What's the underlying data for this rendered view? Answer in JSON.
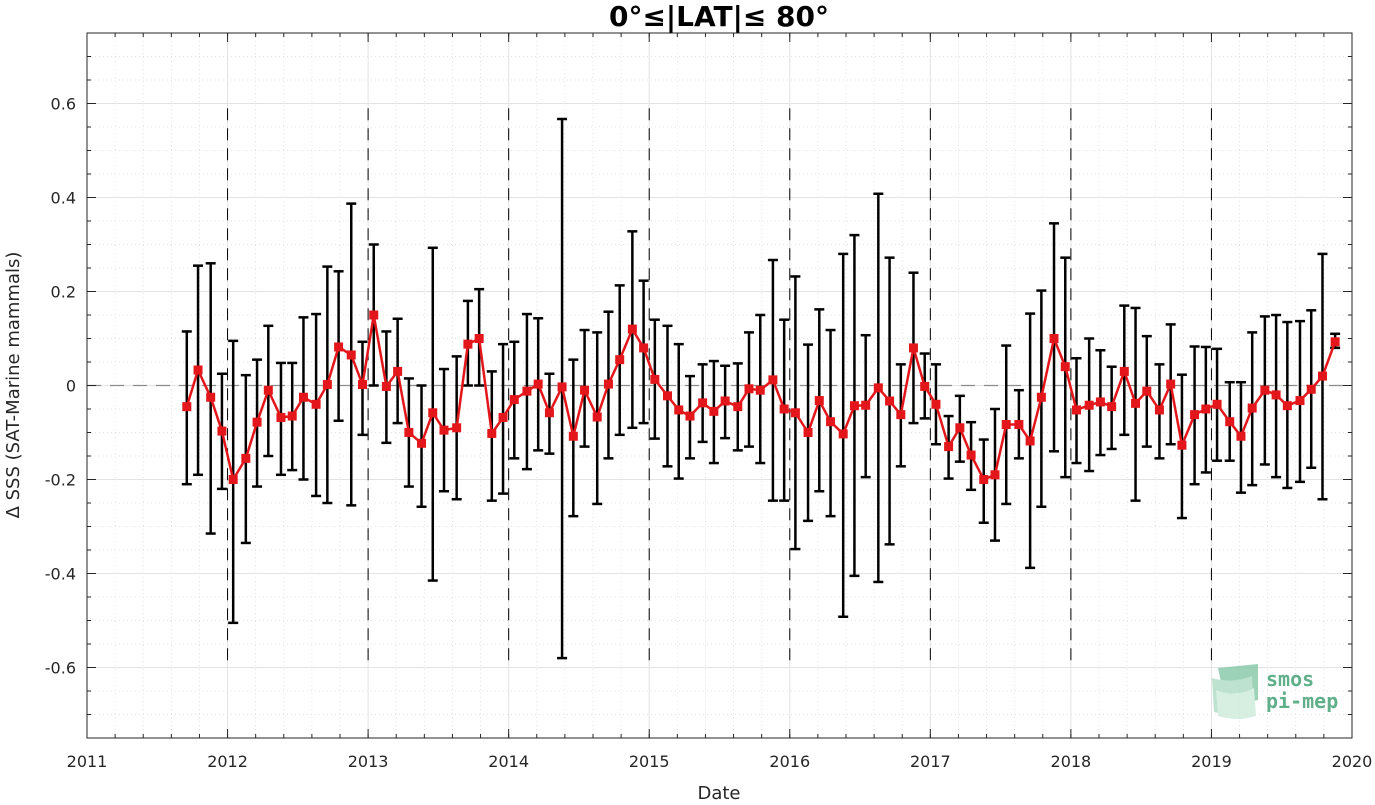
{
  "chart_data": {
    "type": "line",
    "title": "0°≤|LAT|≤ 80°",
    "xlabel": "Date",
    "ylabel": "Δ SSS (SAT-Marine mammals)",
    "xlim": [
      2011,
      2020
    ],
    "ylim": [
      -0.75,
      0.75
    ],
    "x_ticks": [
      2011,
      2012,
      2013,
      2014,
      2015,
      2016,
      2017,
      2018,
      2019,
      2020
    ],
    "x_tick_labels": [
      "2011",
      "2012",
      "2013",
      "2014",
      "2015",
      "2016",
      "2017",
      "2018",
      "2019",
      "2020"
    ],
    "y_ticks": [
      0.6,
      0.4,
      0.2,
      0,
      -0.2,
      -0.4,
      -0.6
    ],
    "y_tick_labels": [
      "0.6",
      "0.4",
      "0.2",
      "0",
      "-0.2",
      "-0.4",
      "-0.6"
    ],
    "grid": true,
    "year_boundary_lines": [
      2012,
      2013,
      2014,
      2015,
      2016,
      2017,
      2018,
      2019
    ],
    "zero_line": 0,
    "series": [
      {
        "color": "#e3171b",
        "error_bar_color": "#000000",
        "marker": "square",
        "x": [
          2011.71,
          2011.79,
          2011.88,
          2011.96,
          2012.04,
          2012.13,
          2012.21,
          2012.29,
          2012.38,
          2012.46,
          2012.54,
          2012.63,
          2012.71,
          2012.79,
          2012.88,
          2012.96,
          2013.04,
          2013.13,
          2013.21,
          2013.29,
          2013.38,
          2013.46,
          2013.54,
          2013.63,
          2013.71,
          2013.79,
          2013.88,
          2013.96,
          2014.04,
          2014.13,
          2014.21,
          2014.29,
          2014.38,
          2014.46,
          2014.54,
          2014.63,
          2014.71,
          2014.79,
          2014.88,
          2014.96,
          2015.04,
          2015.13,
          2015.21,
          2015.29,
          2015.38,
          2015.46,
          2015.54,
          2015.63,
          2015.71,
          2015.79,
          2015.88,
          2015.96,
          2016.04,
          2016.13,
          2016.21,
          2016.29,
          2016.38,
          2016.46,
          2016.54,
          2016.63,
          2016.71,
          2016.79,
          2016.88,
          2016.96,
          2017.04,
          2017.13,
          2017.21,
          2017.29,
          2017.38,
          2017.46,
          2017.54,
          2017.63,
          2017.71,
          2017.79,
          2017.88,
          2017.96,
          2018.04,
          2018.13,
          2018.21,
          2018.29,
          2018.38,
          2018.46,
          2018.54,
          2018.63,
          2018.71,
          2018.79,
          2018.88,
          2018.96,
          2019.04,
          2019.13,
          2019.21,
          2019.29,
          2019.38,
          2019.46,
          2019.54,
          2019.63,
          2019.71,
          2019.79,
          2019.88
        ],
        "y": [
          -0.045,
          0.033,
          -0.025,
          -0.097,
          -0.2,
          -0.155,
          -0.078,
          -0.01,
          -0.068,
          -0.065,
          -0.025,
          -0.04,
          0.002,
          0.082,
          0.065,
          0.002,
          0.15,
          -0.002,
          0.03,
          -0.1,
          -0.123,
          -0.058,
          -0.095,
          -0.09,
          0.088,
          0.1,
          -0.102,
          -0.068,
          -0.03,
          -0.012,
          0.003,
          -0.058,
          -0.003,
          -0.108,
          -0.01,
          -0.067,
          0.003,
          0.055,
          0.12,
          0.08,
          0.013,
          -0.022,
          -0.052,
          -0.065,
          -0.037,
          -0.055,
          -0.033,
          -0.045,
          -0.007,
          -0.01,
          0.012,
          -0.05,
          -0.058,
          -0.1,
          -0.032,
          -0.077,
          -0.103,
          -0.043,
          -0.042,
          -0.005,
          -0.033,
          -0.062,
          0.08,
          -0.002,
          -0.04,
          -0.13,
          -0.09,
          -0.148,
          -0.2,
          -0.19,
          -0.083,
          -0.083,
          -0.118,
          -0.025,
          0.1,
          0.04,
          -0.052,
          -0.042,
          -0.035,
          -0.045,
          0.03,
          -0.038,
          -0.012,
          -0.052,
          0.003,
          -0.127,
          -0.062,
          -0.05,
          -0.04,
          -0.077,
          -0.108,
          -0.048,
          -0.01,
          -0.02,
          -0.043,
          -0.032,
          -0.008,
          0.02,
          0.093
        ],
        "err_low": [
          -0.21,
          -0.19,
          -0.315,
          -0.22,
          -0.505,
          -0.335,
          -0.215,
          -0.15,
          -0.19,
          -0.18,
          -0.2,
          -0.235,
          -0.25,
          -0.075,
          -0.255,
          -0.105,
          0.0,
          -0.122,
          -0.08,
          -0.215,
          -0.258,
          -0.415,
          -0.225,
          -0.242,
          -0.0,
          -0.0,
          -0.245,
          -0.23,
          -0.155,
          -0.178,
          -0.138,
          -0.145,
          -0.58,
          -0.278,
          -0.13,
          -0.252,
          -0.155,
          -0.105,
          -0.09,
          -0.08,
          -0.113,
          -0.172,
          -0.198,
          -0.155,
          -0.12,
          -0.165,
          -0.112,
          -0.138,
          -0.13,
          -0.165,
          -0.245,
          -0.245,
          -0.348,
          -0.288,
          -0.225,
          -0.278,
          -0.492,
          -0.405,
          -0.195,
          -0.418,
          -0.338,
          -0.172,
          -0.08,
          -0.07,
          -0.125,
          -0.198,
          -0.162,
          -0.222,
          -0.292,
          -0.33,
          -0.252,
          -0.155,
          -0.388,
          -0.258,
          -0.14,
          -0.195,
          -0.165,
          -0.182,
          -0.148,
          -0.135,
          -0.105,
          -0.245,
          -0.13,
          -0.155,
          -0.125,
          -0.282,
          -0.21,
          -0.185,
          -0.16,
          -0.16,
          -0.228,
          -0.212,
          -0.168,
          -0.195,
          -0.218,
          -0.205,
          -0.175,
          -0.242,
          0.08
        ],
        "err_high": [
          0.115,
          0.255,
          0.26,
          0.025,
          0.095,
          0.022,
          0.055,
          0.127,
          0.048,
          0.048,
          0.145,
          0.152,
          0.253,
          0.243,
          0.387,
          0.093,
          0.3,
          0.115,
          0.142,
          0.015,
          0.0,
          0.293,
          0.035,
          0.062,
          0.18,
          0.205,
          0.03,
          0.088,
          0.093,
          0.152,
          0.143,
          0.025,
          0.567,
          0.055,
          0.118,
          0.113,
          0.157,
          0.213,
          0.328,
          0.223,
          0.14,
          0.127,
          0.088,
          0.02,
          0.045,
          0.052,
          0.042,
          0.047,
          0.113,
          0.15,
          0.267,
          0.14,
          0.232,
          0.087,
          0.162,
          0.118,
          0.28,
          0.32,
          0.107,
          0.408,
          0.272,
          0.045,
          0.24,
          0.068,
          0.045,
          -0.065,
          -0.022,
          -0.078,
          -0.115,
          -0.05,
          0.085,
          -0.01,
          0.153,
          0.202,
          0.345,
          0.272,
          0.058,
          0.1,
          0.075,
          0.04,
          0.17,
          0.165,
          0.105,
          0.045,
          0.13,
          0.023,
          0.083,
          0.082,
          0.078,
          0.007,
          0.007,
          0.113,
          0.147,
          0.15,
          0.135,
          0.137,
          0.16,
          0.28,
          0.11
        ]
      }
    ]
  },
  "logo": {
    "line1": "smos",
    "line2": "pi-mep",
    "color": "#5fb08a"
  }
}
